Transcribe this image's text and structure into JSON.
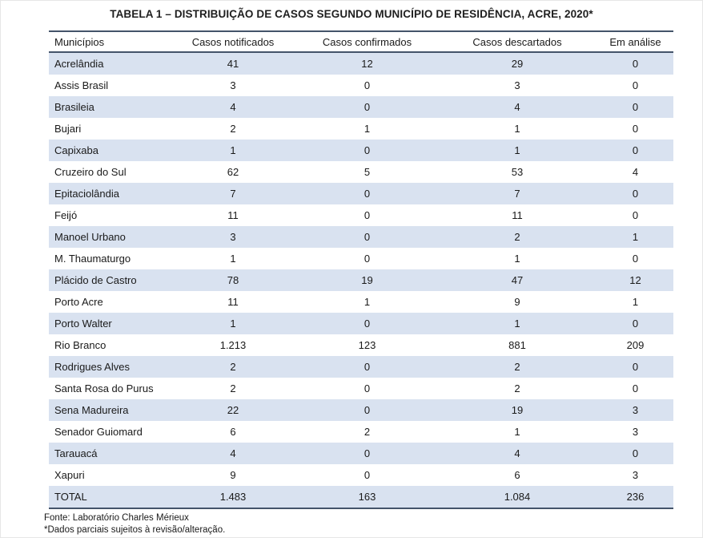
{
  "title": "TABELA 1 – DISTRIBUIÇÃO DE CASOS SEGUNDO MUNICÍPIO DE RESIDÊNCIA, ACRE, 2020*",
  "table": {
    "columns": {
      "municipios": "Municípios",
      "notificados": "Casos notificados",
      "confirmados": "Casos confirmados",
      "descartados": "Casos descartados",
      "analise": "Em análise"
    },
    "rows": [
      {
        "municipio": "Acrelândia",
        "notificados": "41",
        "confirmados": "12",
        "descartados": "29",
        "analise": "0"
      },
      {
        "municipio": "Assis Brasil",
        "notificados": "3",
        "confirmados": "0",
        "descartados": "3",
        "analise": "0"
      },
      {
        "municipio": "Brasileia",
        "notificados": "4",
        "confirmados": "0",
        "descartados": "4",
        "analise": "0"
      },
      {
        "municipio": "Bujari",
        "notificados": "2",
        "confirmados": "1",
        "descartados": "1",
        "analise": "0"
      },
      {
        "municipio": "Capixaba",
        "notificados": "1",
        "confirmados": "0",
        "descartados": "1",
        "analise": "0"
      },
      {
        "municipio": "Cruzeiro do Sul",
        "notificados": "62",
        "confirmados": "5",
        "descartados": "53",
        "analise": "4"
      },
      {
        "municipio": "Epitaciolândia",
        "notificados": "7",
        "confirmados": "0",
        "descartados": "7",
        "analise": "0"
      },
      {
        "municipio": "Feijó",
        "notificados": "11",
        "confirmados": "0",
        "descartados": "11",
        "analise": "0"
      },
      {
        "municipio": "Manoel Urbano",
        "notificados": "3",
        "confirmados": "0",
        "descartados": "2",
        "analise": "1"
      },
      {
        "municipio": "M. Thaumaturgo",
        "notificados": "1",
        "confirmados": "0",
        "descartados": "1",
        "analise": "0"
      },
      {
        "municipio": "Plácido de Castro",
        "notificados": "78",
        "confirmados": "19",
        "descartados": "47",
        "analise": "12"
      },
      {
        "municipio": "Porto Acre",
        "notificados": "11",
        "confirmados": "1",
        "descartados": "9",
        "analise": "1"
      },
      {
        "municipio": "Porto Walter",
        "notificados": "1",
        "confirmados": "0",
        "descartados": "1",
        "analise": "0"
      },
      {
        "municipio": "Rio Branco",
        "notificados": "1.213",
        "confirmados": "123",
        "descartados": "881",
        "analise": "209"
      },
      {
        "municipio": "Rodrigues Alves",
        "notificados": "2",
        "confirmados": "0",
        "descartados": "2",
        "analise": "0"
      },
      {
        "municipio": "Santa Rosa do Purus",
        "notificados": "2",
        "confirmados": "0",
        "descartados": "2",
        "analise": "0"
      },
      {
        "municipio": "Sena Madureira",
        "notificados": "22",
        "confirmados": "0",
        "descartados": "19",
        "analise": "3"
      },
      {
        "municipio": "Senador Guiomard",
        "notificados": "6",
        "confirmados": "2",
        "descartados": "1",
        "analise": "3"
      },
      {
        "municipio": "Tarauacá",
        "notificados": "4",
        "confirmados": "0",
        "descartados": "4",
        "analise": "0"
      },
      {
        "municipio": "Xapuri",
        "notificados": "9",
        "confirmados": "0",
        "descartados": "6",
        "analise": "3"
      },
      {
        "municipio": "TOTAL",
        "notificados": "1.483",
        "confirmados": "163",
        "descartados": "1.084",
        "analise": "236"
      }
    ]
  },
  "footnotes": {
    "source": "Fonte: Laboratório Charles Mérieux",
    "note": "*Dados parciais sujeitos à revisão/alteração."
  },
  "colors": {
    "zebra_row": "#D9E2F0",
    "table_border": "#44546A",
    "text": "#1A1A1A"
  }
}
